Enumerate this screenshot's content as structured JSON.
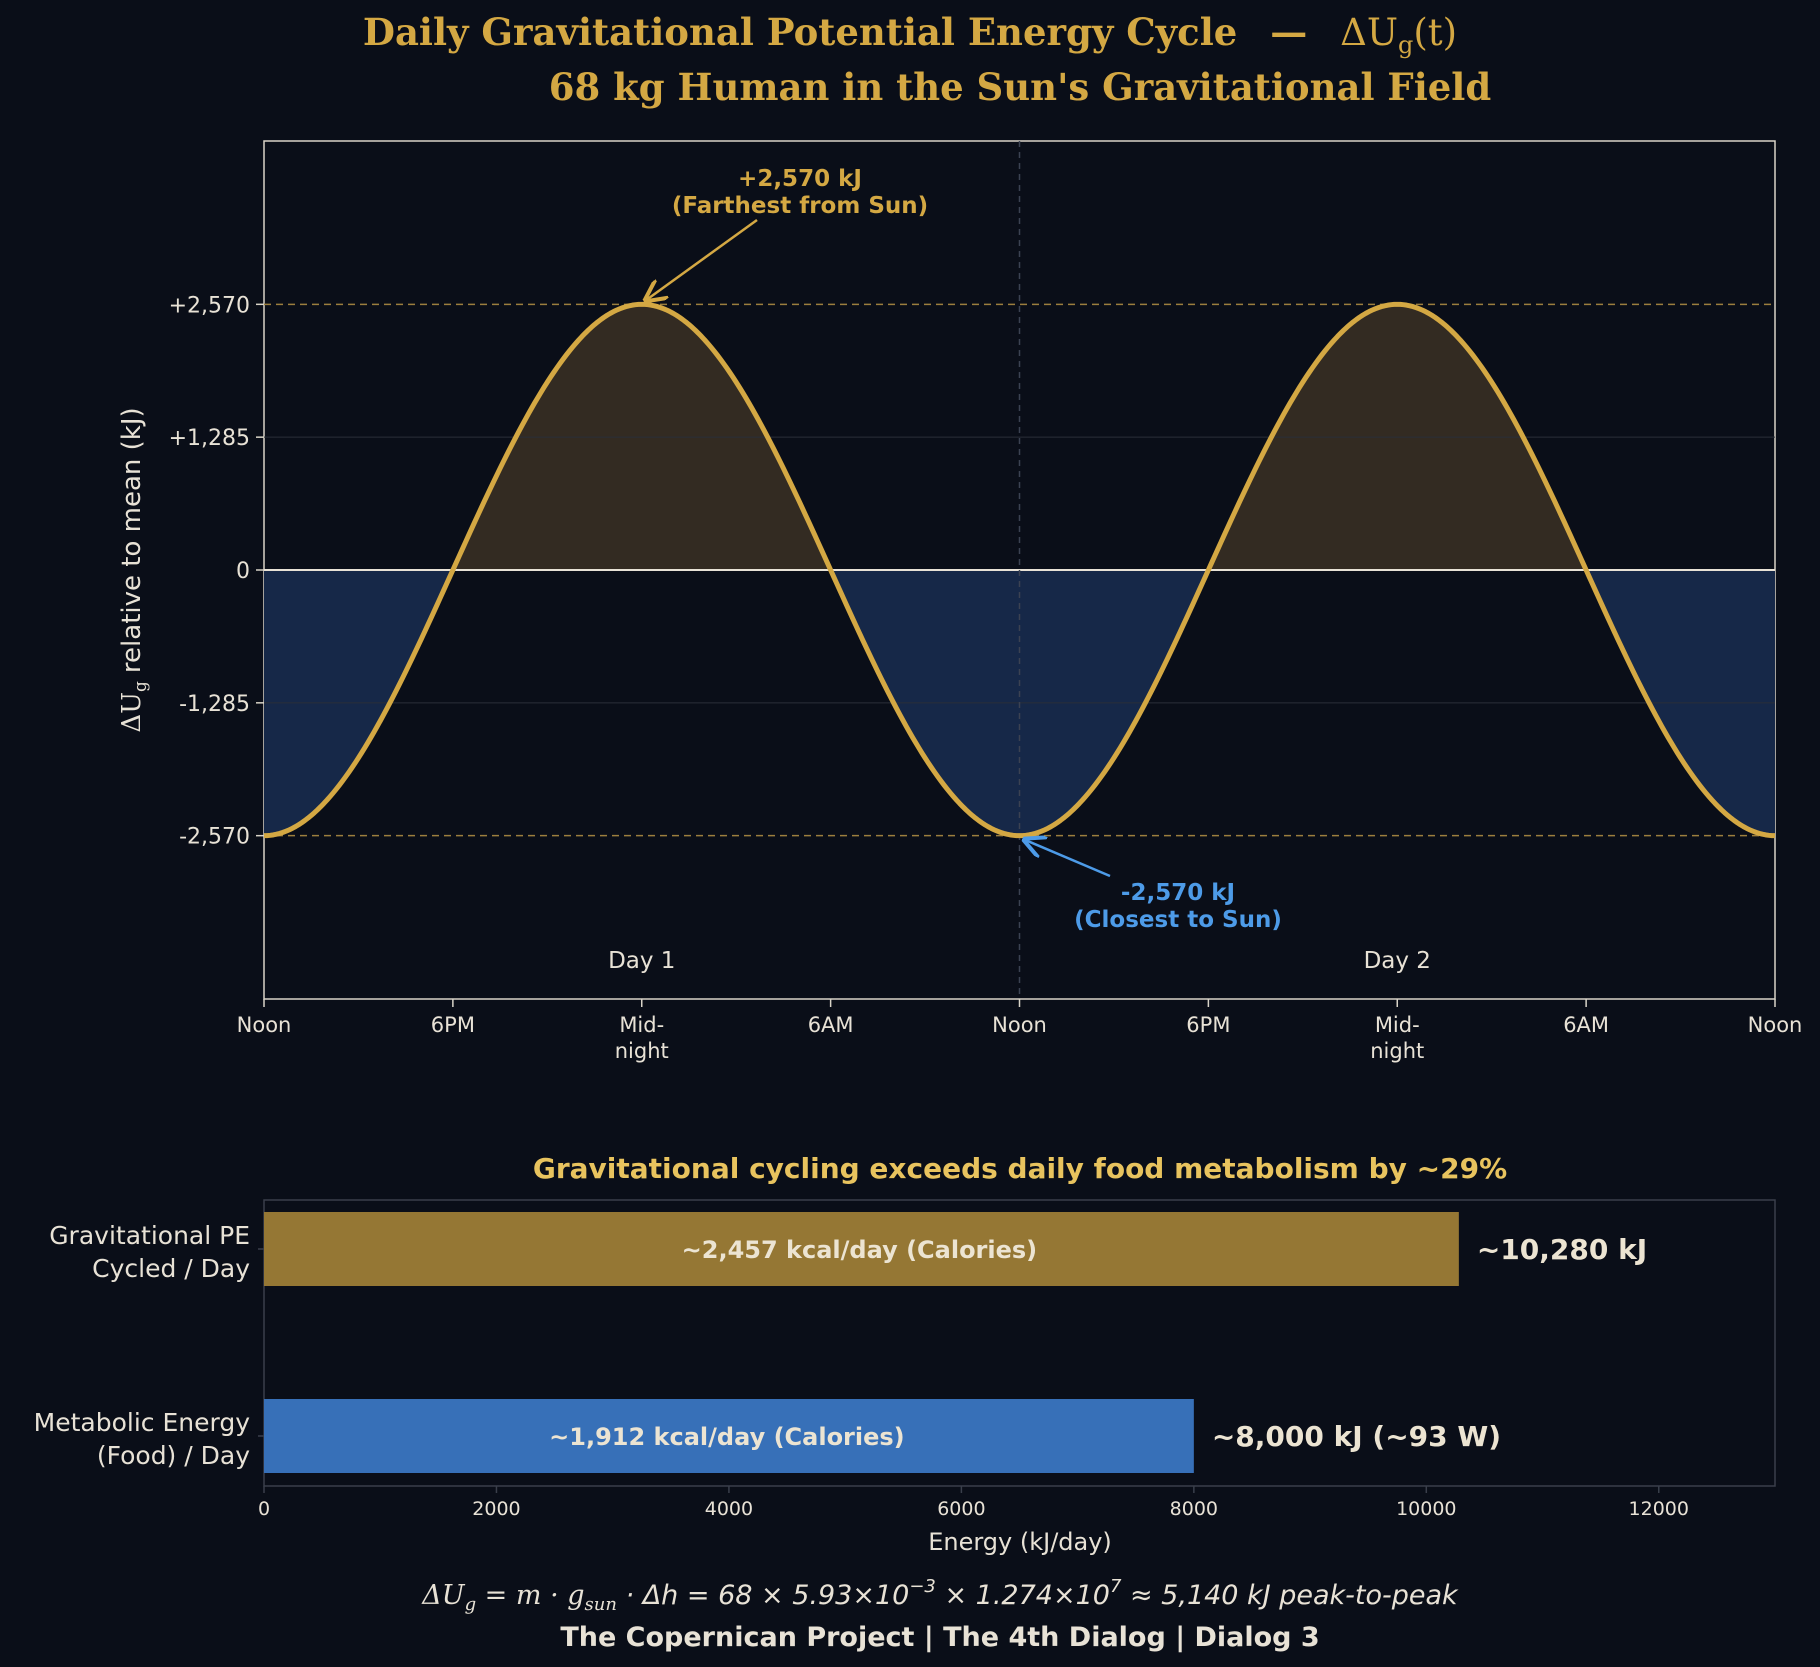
{
  "title": {
    "line1": "Daily Gravitational Potential Energy Cycle",
    "dash": "—",
    "symbol_delta": "ΔU",
    "symbol_sub": "g",
    "symbol_t": "(t)",
    "line2": "68 kg Human in the Sun's Gravitational Field"
  },
  "colors": {
    "background": "#0a0e18",
    "gold": "#d4a843",
    "blue": "#4d9be8",
    "positive_fill": "#332b22",
    "negative_fill": "#162848",
    "bar_gold": "#957734",
    "bar_blue": "#3770b8",
    "text": "#e8e2d6"
  },
  "chart_data": [
    {
      "type": "line",
      "title": "Daily Gravitational Potential Energy Cycle — ΔUg(t)",
      "ylabel_prefix": "ΔU",
      "ylabel_sub": "g",
      "ylabel_suffix": "relative to mean  (kJ)",
      "x_ticks": [
        {
          "hours": 0,
          "line1": "Noon",
          "line2": ""
        },
        {
          "hours": 6,
          "line1": "6PM",
          "line2": ""
        },
        {
          "hours": 12,
          "line1": "Mid-",
          "line2": "night"
        },
        {
          "hours": 18,
          "line1": "6AM",
          "line2": ""
        },
        {
          "hours": 24,
          "line1": "Noon",
          "line2": ""
        },
        {
          "hours": 30,
          "line1": "6PM",
          "line2": ""
        },
        {
          "hours": 36,
          "line1": "Mid-",
          "line2": "night"
        },
        {
          "hours": 42,
          "line1": "6AM",
          "line2": ""
        },
        {
          "hours": 48,
          "line1": "Noon",
          "line2": ""
        }
      ],
      "y_ticks": [
        {
          "value": 2570,
          "label": "+2,570"
        },
        {
          "value": 1285,
          "label": "+1,285"
        },
        {
          "value": 0,
          "label": "0"
        },
        {
          "value": -1285,
          "label": "-1,285"
        },
        {
          "value": -2570,
          "label": "-2,570"
        }
      ],
      "xlim": [
        0,
        48
      ],
      "ylim": [
        -4150,
        4150
      ],
      "amplitude": 2570,
      "period_hours": 24,
      "series": [
        {
          "function": "-amplitude * cos(2π · t / 24)",
          "x": [
            0,
            3,
            6,
            9,
            12,
            15,
            18,
            21,
            24,
            27,
            30,
            33,
            36,
            39,
            42,
            45,
            48
          ],
          "values": [
            -2570,
            -1817,
            0,
            1817,
            2570,
            1817,
            0,
            -1817,
            -2570,
            -1817,
            0,
            1817,
            2570,
            1817,
            0,
            -1817,
            -2570
          ]
        }
      ],
      "day_labels": [
        {
          "hours": 12,
          "label": "Day 1"
        },
        {
          "hours": 36,
          "label": "Day 2"
        }
      ],
      "annotations": [
        {
          "hours": 12,
          "value": 2570,
          "line1": "+2,570 kJ",
          "line2": "(Farthest from Sun)",
          "color": "gold"
        },
        {
          "hours": 24,
          "value": -2570,
          "line1": "-2,570 kJ",
          "line2": "(Closest to Sun)",
          "color": "blue"
        }
      ],
      "grid": "horizontal at ±1285",
      "reference_lines": "dashed at ±2570, solid at 0, dashed vertical at day boundary"
    },
    {
      "type": "bar",
      "orientation": "horizontal",
      "title": "Gravitational cycling exceeds daily food metabolism by ~29%",
      "xlabel": "Energy (kJ/day)",
      "xlim": [
        0,
        13000
      ],
      "x_ticks": [
        0,
        2000,
        4000,
        6000,
        8000,
        10000,
        12000
      ],
      "categories": [
        {
          "line1": "Gravitational PE",
          "line2": "Cycled / Day"
        },
        {
          "line1": "Metabolic Energy",
          "line2": "(Food) / Day"
        }
      ],
      "values": [
        10280,
        8000
      ],
      "inner_labels": [
        "~2,457 kcal/day (Calories)",
        "~1,912 kcal/day (Calories)"
      ],
      "end_labels": [
        "~10,280 kJ",
        "~8,000 kJ  (~93 W)"
      ],
      "bar_colors": [
        "bar_gold",
        "bar_blue"
      ]
    }
  ],
  "footer": {
    "formula_left": "ΔU",
    "formula_sub": "g",
    "formula_mid": " = m · g",
    "formula_sub2": "sun",
    "formula_mid2": " · Δh = 68 × 5.93×10",
    "formula_exp1": "−3",
    "formula_mid3": " × 1.274×10",
    "formula_exp2": "7",
    "formula_end": " ≈ 5,140 kJ peak-to-peak",
    "credit": "The Copernican Project  |  The 4th Dialog  |  Dialog 3"
  }
}
